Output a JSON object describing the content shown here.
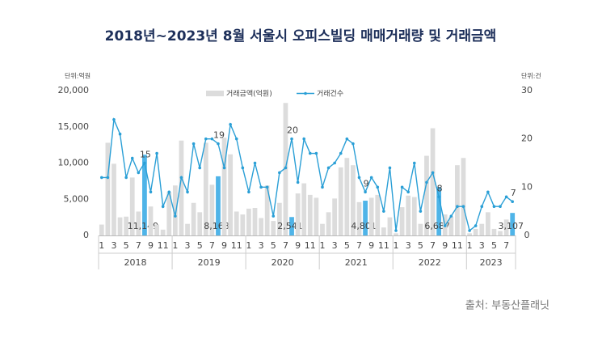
{
  "chart_data": {
    "type": "bar-line",
    "title": "2018년~2023년 8월 서울시 오피스빌딩 매매거래량 및 거래금액",
    "y_unit": "단위:억원",
    "y2_unit": "단위:건",
    "source": "출처: 부동산플래닛",
    "categories": [
      "1",
      null,
      "3",
      null,
      "5",
      null,
      "7",
      null,
      "9",
      null,
      "11",
      null,
      "1",
      null,
      "3",
      null,
      "5",
      null,
      "7",
      null,
      "9",
      null,
      "11",
      null,
      "1",
      null,
      "3",
      null,
      "5",
      null,
      "7",
      null,
      "9",
      null,
      "11",
      null,
      "1",
      null,
      "3",
      null,
      "5",
      null,
      "7",
      null,
      "9",
      null,
      "11",
      null,
      "1",
      null,
      "3",
      null,
      "5",
      null,
      "7",
      null,
      "9",
      null,
      "11",
      null,
      "1",
      null,
      "3",
      null,
      "5",
      null,
      "7",
      null
    ],
    "years": [
      "2018",
      "2019",
      "2020",
      "2021",
      "2022",
      "2023"
    ],
    "ylim": [
      0,
      20000
    ],
    "yticks": [
      0,
      {
        "value": 5000,
        "label": "5,000"
      },
      {
        "value": 10000,
        "label": "10,000"
      },
      {
        "value": 15000,
        "label": "15,000"
      },
      {
        "value": 20000,
        "label": "20,000"
      }
    ],
    "y2lim": [
      0,
      30
    ],
    "y2ticks": [
      0,
      10,
      20,
      30
    ],
    "grid": false,
    "legend": "top",
    "series": [
      {
        "name": "거래금액(억원)",
        "kind": "bar",
        "color": "#dcdcdc",
        "highlight_color": "#4fb4e8",
        "values": [
          1500,
          12800,
          9900,
          2500,
          2600,
          8000,
          3300,
          11149,
          4000,
          1500,
          800,
          6000,
          6900,
          13100,
          1600,
          4500,
          3200,
          12800,
          7000,
          8168,
          13500,
          11200,
          3300,
          2900,
          3700,
          3800,
          2400,
          6900,
          2000,
          4500,
          18300,
          2541,
          5800,
          7200,
          5600,
          5200,
          1600,
          3200,
          5100,
          9400,
          10700,
          9700,
          4600,
          4801,
          5200,
          5600,
          1100,
          2500,
          300,
          3900,
          5500,
          5300,
          1600,
          11000,
          14800,
          6687,
          2900,
          2600,
          9700,
          10700,
          300,
          900,
          1600,
          3200,
          900,
          600,
          2200,
          3107
        ],
        "value_labels": [
          null,
          null,
          null,
          null,
          null,
          null,
          null,
          "11,149",
          null,
          null,
          null,
          null,
          null,
          null,
          null,
          null,
          null,
          null,
          null,
          "8,168",
          null,
          null,
          null,
          null,
          null,
          null,
          null,
          null,
          null,
          null,
          null,
          "2,541",
          null,
          null,
          null,
          null,
          null,
          null,
          null,
          null,
          null,
          null,
          null,
          "4,801",
          null,
          null,
          null,
          null,
          null,
          null,
          null,
          null,
          null,
          null,
          null,
          "6,687",
          null,
          null,
          null,
          null,
          null,
          null,
          null,
          null,
          null,
          null,
          null,
          "3,107"
        ]
      },
      {
        "name": "거래건수",
        "kind": "line",
        "axis": "y2",
        "color": "#2a9fd6",
        "values": [
          12,
          12,
          24,
          21,
          12,
          16,
          13,
          15,
          9,
          17,
          6,
          9,
          4,
          12,
          9,
          19,
          14,
          20,
          20,
          19,
          14,
          23,
          20,
          14,
          9,
          15,
          10,
          10,
          4,
          13,
          14,
          20,
          11,
          20,
          17,
          17,
          10,
          14,
          15,
          17,
          20,
          19,
          12,
          9,
          12,
          10,
          5,
          14,
          1,
          10,
          9,
          15,
          5,
          11,
          13,
          8,
          2,
          4,
          6,
          6,
          1,
          2,
          6,
          9,
          6,
          6,
          8,
          7
        ],
        "value_labels": [
          null,
          null,
          null,
          null,
          null,
          null,
          null,
          "15",
          null,
          null,
          null,
          null,
          null,
          null,
          null,
          null,
          null,
          null,
          null,
          "19",
          null,
          null,
          null,
          null,
          null,
          null,
          null,
          null,
          null,
          null,
          null,
          "20",
          null,
          null,
          null,
          null,
          null,
          null,
          null,
          null,
          null,
          null,
          null,
          "9",
          null,
          null,
          null,
          null,
          null,
          null,
          null,
          null,
          null,
          null,
          null,
          "8",
          null,
          null,
          null,
          null,
          null,
          null,
          null,
          null,
          null,
          null,
          null,
          "7"
        ]
      }
    ]
  }
}
